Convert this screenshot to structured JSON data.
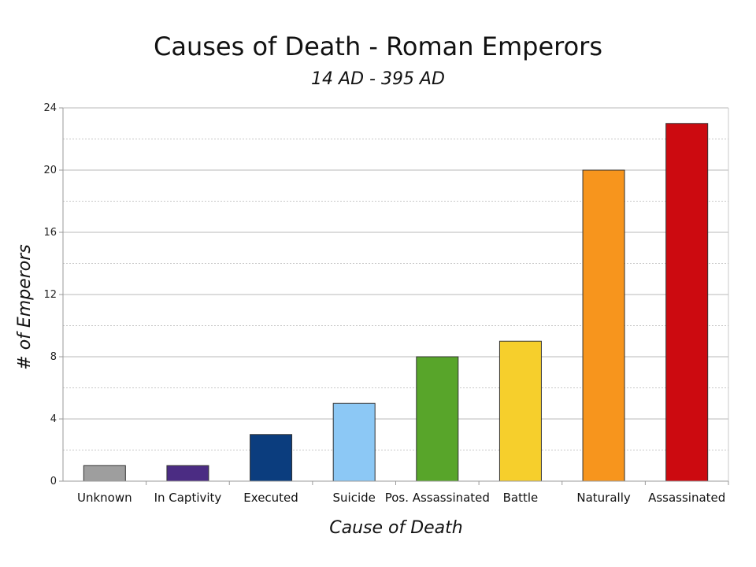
{
  "chart_data": {
    "type": "bar",
    "title": "Causes of Death - Roman Emperors",
    "subtitle": "14 AD - 395 AD",
    "xlabel": "Cause of Death",
    "ylabel": "# of Emperors",
    "categories": [
      "Unknown",
      "In Captivity",
      "Executed",
      "Suicide",
      "Pos. Assassinated",
      "Battle",
      "Naturally",
      "Assassinated"
    ],
    "values": [
      1,
      1,
      3,
      5,
      8,
      9,
      20,
      23
    ],
    "colors": [
      "#9e9e9e",
      "#4b2c83",
      "#0b3d7e",
      "#8cc8f5",
      "#58a52a",
      "#f6cf2c",
      "#f7951d",
      "#cc0a10"
    ],
    "ylim": [
      0,
      24
    ],
    "yticks": [
      0,
      4,
      8,
      12,
      16,
      20,
      24
    ],
    "grid": true,
    "legend": "none"
  }
}
